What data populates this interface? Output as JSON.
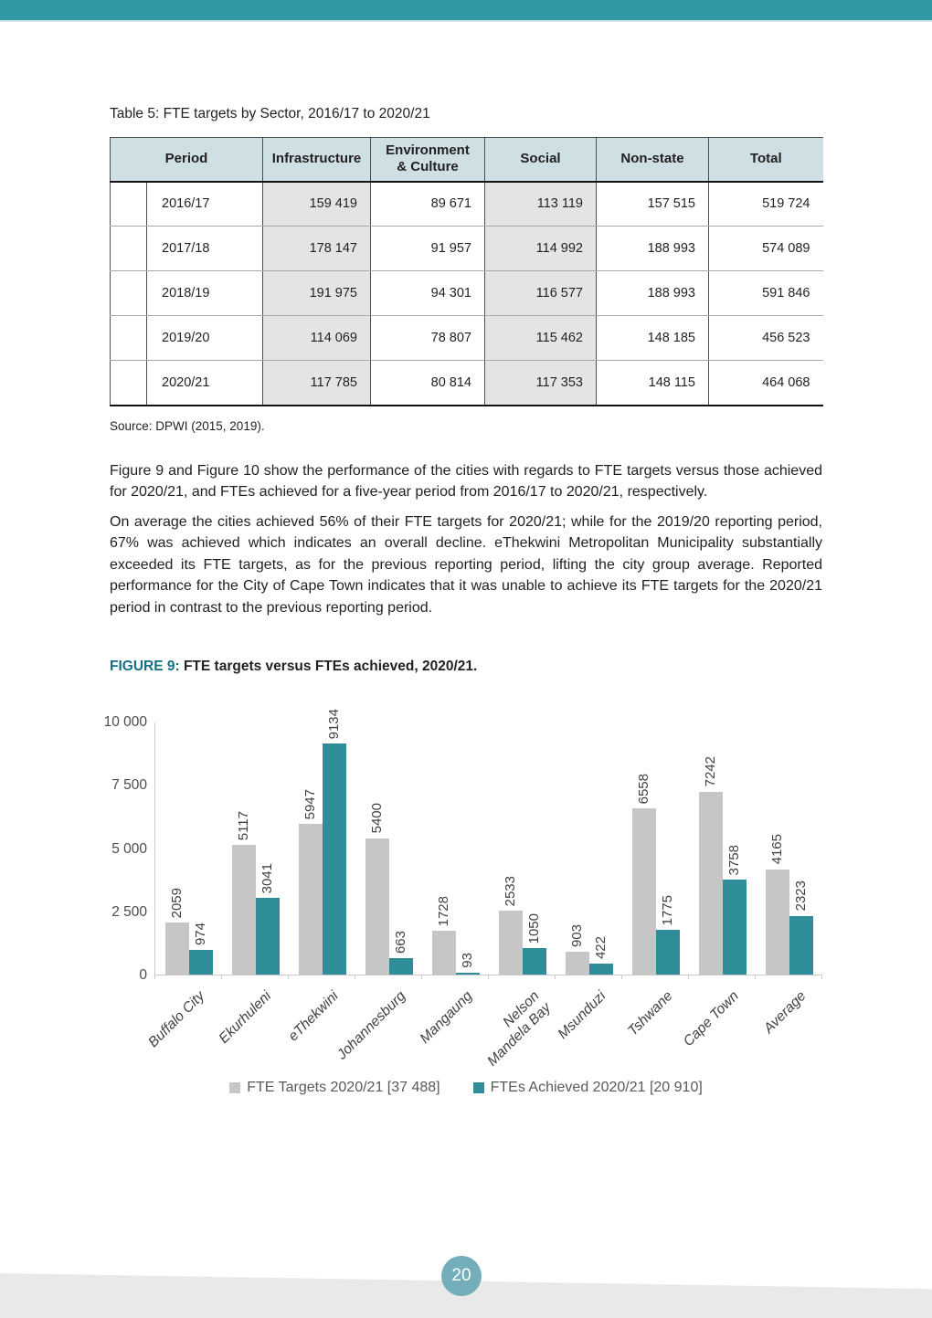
{
  "table_section": {
    "title": "Table 5: FTE targets by Sector, 2016/17 to 2020/21",
    "columns": [
      "Period",
      "Infrastructure",
      "Environment\n& Culture",
      "Social",
      "Non-state",
      "Total"
    ],
    "rows": [
      {
        "period": "2016/17",
        "values": [
          "159 419",
          "89 671",
          "113 119",
          "157 515",
          "519 724"
        ]
      },
      {
        "period": "2017/18",
        "values": [
          "178 147",
          "91 957",
          "114 992",
          "188 993",
          "574 089"
        ]
      },
      {
        "period": "2018/19",
        "values": [
          "191 975",
          "94 301",
          "116 577",
          "188 993",
          "591 846"
        ]
      },
      {
        "period": "2019/20",
        "values": [
          "114 069",
          "78 807",
          "115 462",
          "148 185",
          "456 523"
        ]
      },
      {
        "period": "2020/21",
        "values": [
          "117 785",
          "80 814",
          "117 353",
          "148 115",
          "464 068"
        ]
      }
    ],
    "source": "Source: DPWI (2015, 2019)."
  },
  "paragraphs": [
    "Figure 9 and Figure 10 show the performance of the cities with regards to FTE targets versus those achieved for 2020/21, and FTEs achieved for a five-year period from 2016/17 to 2020/21, respectively.",
    "On average the cities achieved 56% of their FTE targets for 2020/21; while for the 2019/20 reporting period, 67% was achieved which indicates an overall decline. eThekwini Metropolitan Municipality substantially exceeded its FTE targets, as for the previous reporting period, lifting the city group average. Reported performance for the City of Cape Town indicates that it was unable to achieve its FTE targets for the 2020/21 period in contrast to the previous reporting period."
  ],
  "figure": {
    "label": "FIGURE 9:",
    "title": "FTE targets versus FTEs achieved, 2020/21."
  },
  "chart_data": {
    "type": "bar",
    "categories": [
      "Buffalo City",
      "Ekurhuleni",
      "eThekwini",
      "Johannesburg",
      "Mangaung",
      "Nelson\nMandela Bay",
      "Msunduzi",
      "Tshwane",
      "Cape Town",
      "Average"
    ],
    "series": [
      {
        "name": "FTE Targets 2020/21 [37 488]",
        "color": "#c6c6c7",
        "values": [
          2059,
          5117,
          5947,
          5400,
          1728,
          2533,
          903,
          6558,
          7242,
          4165
        ]
      },
      {
        "name": "FTEs Achieved 2020/21 [20 910]",
        "color": "#2e8d99",
        "values": [
          974,
          3041,
          9134,
          663,
          93,
          1050,
          422,
          1775,
          3758,
          2323
        ]
      }
    ],
    "ylim": [
      0,
      10000
    ],
    "yticks": [
      {
        "value": 0,
        "label": "0"
      },
      {
        "value": 2500,
        "label": "2 500"
      },
      {
        "value": 5000,
        "label": "5 000"
      },
      {
        "value": 7500,
        "label": "7 500"
      },
      {
        "value": 10000,
        "label": "10 000"
      }
    ],
    "grid": false,
    "legend_position": "bottom"
  },
  "footer": {
    "page_number": "20"
  }
}
